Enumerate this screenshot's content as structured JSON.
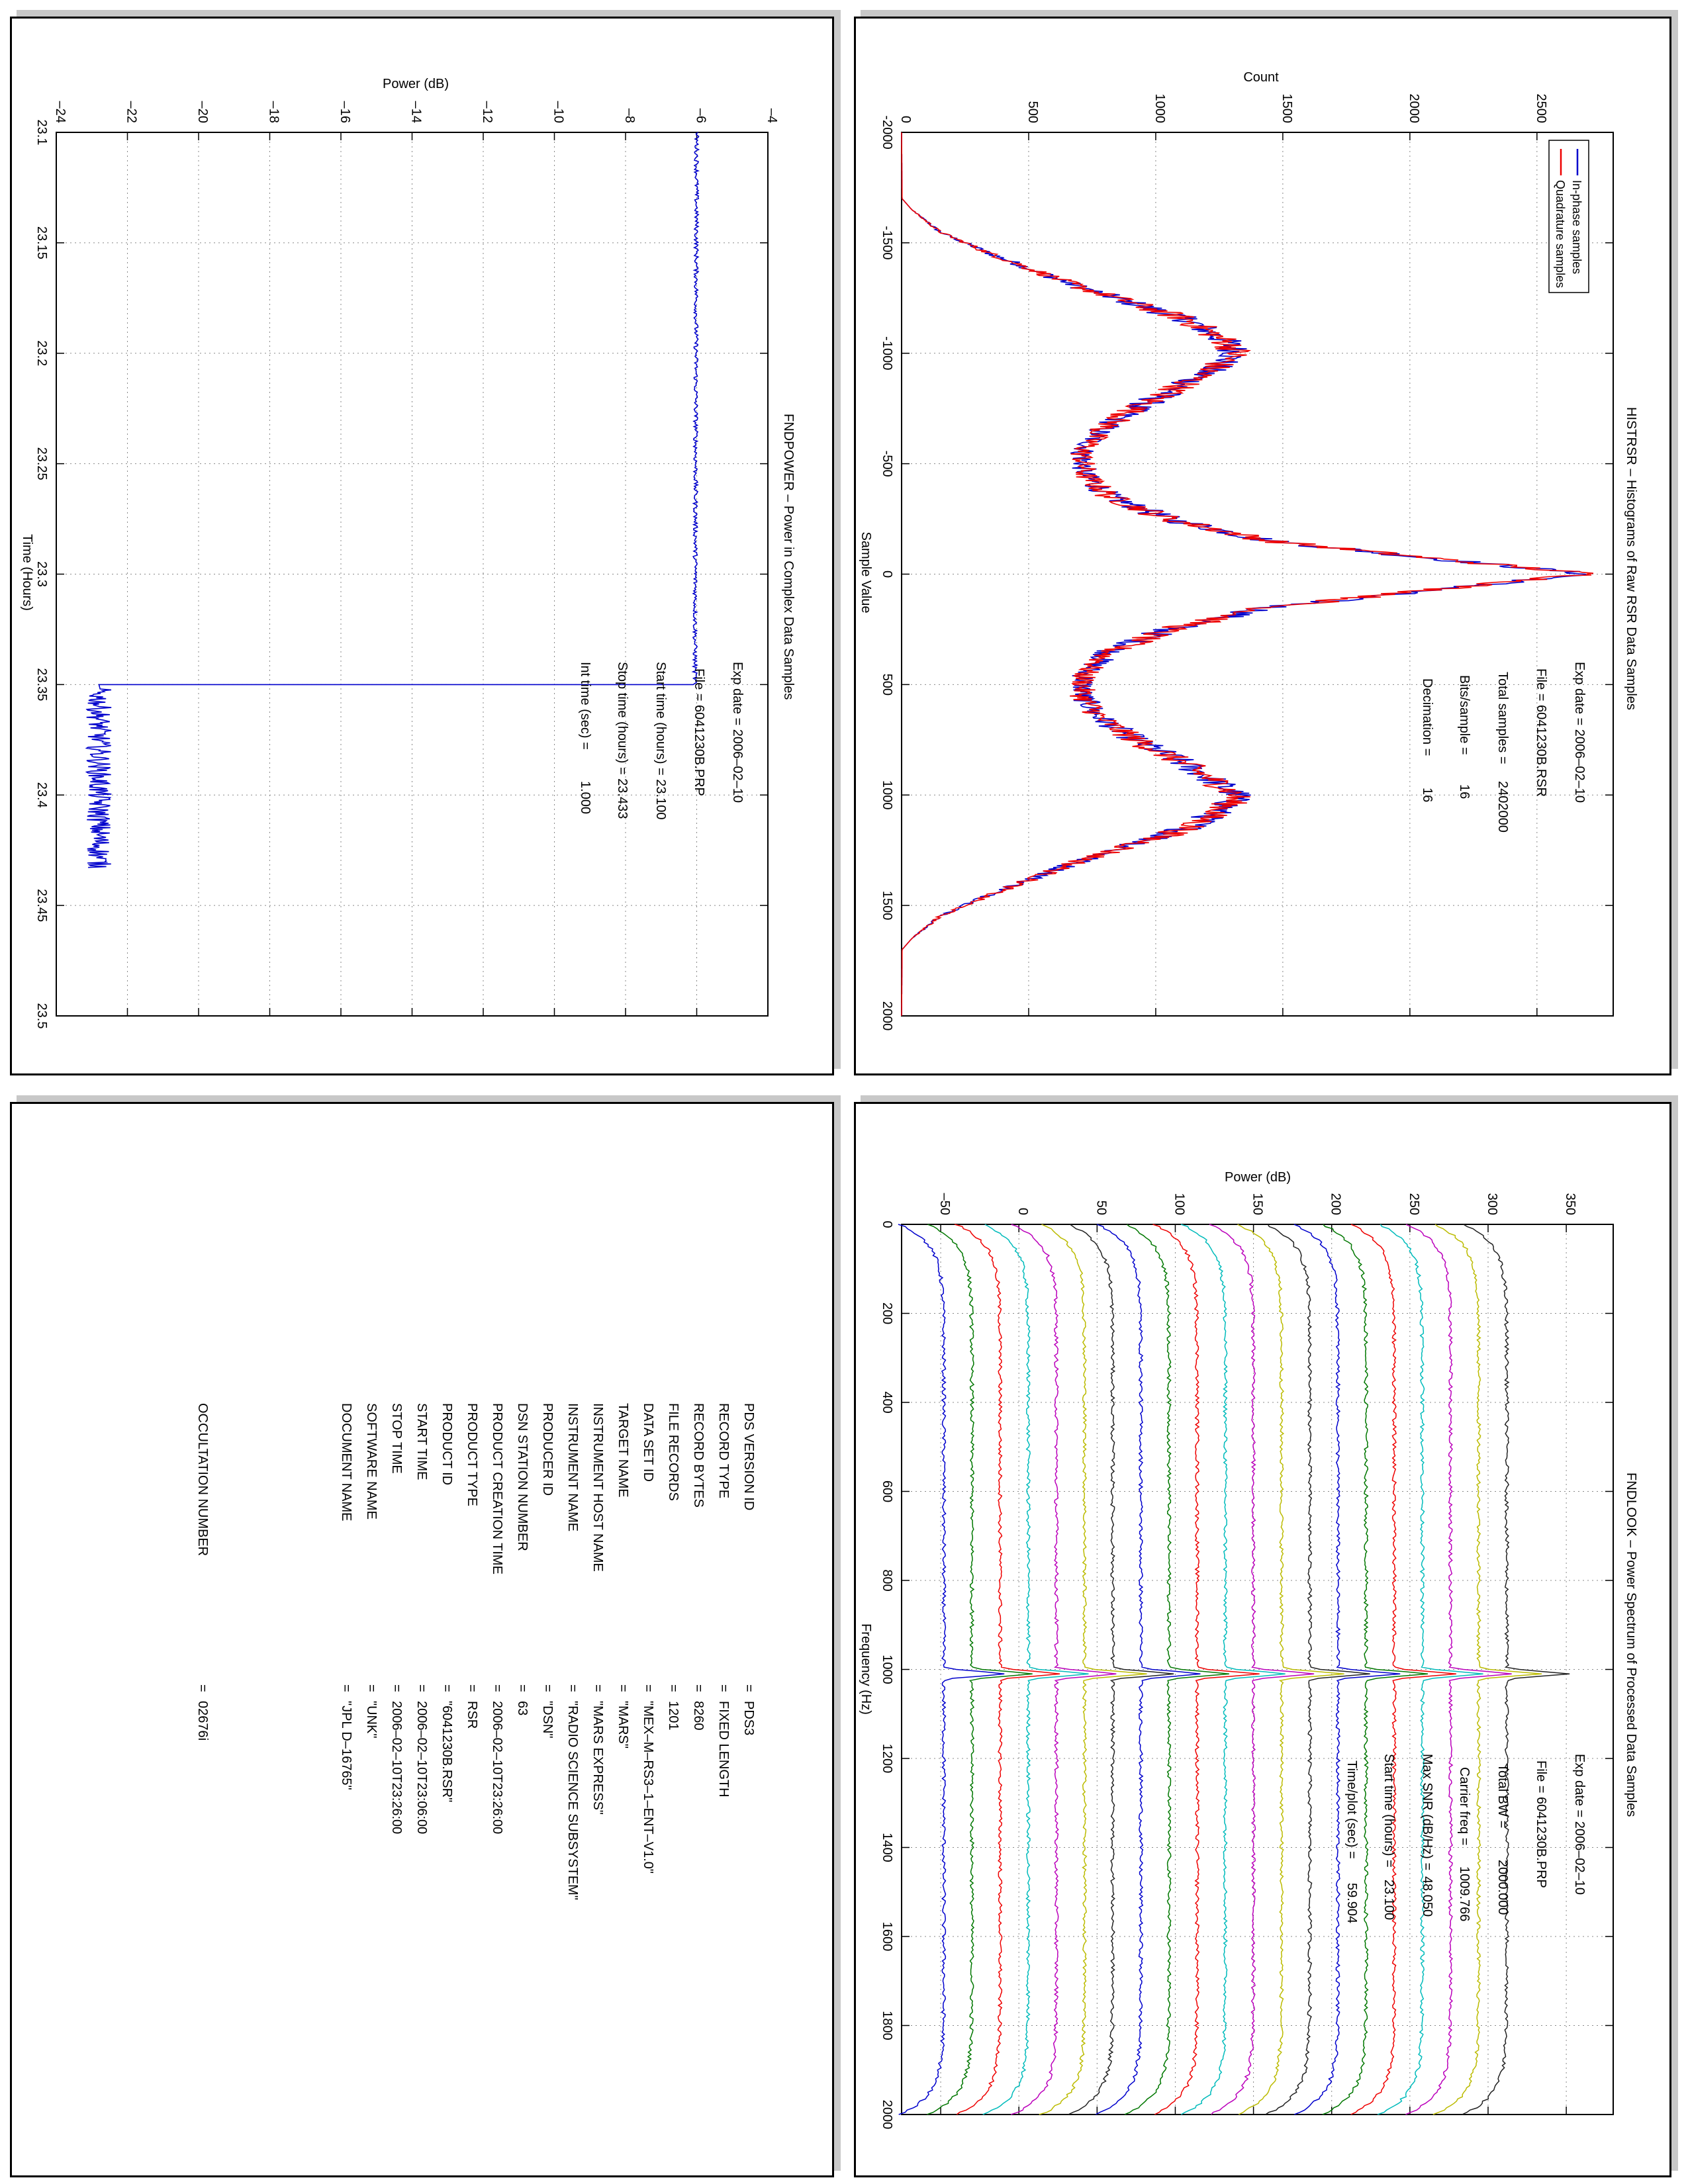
{
  "chart_data": [
    {
      "id": "histrsr",
      "type": "line",
      "title": "HISTRSR – Histograms of Raw RSR Data Samples",
      "xlabel": "Sample Value",
      "ylabel": "Count",
      "xlim": [
        -2000,
        2000
      ],
      "ylim": [
        0,
        2800
      ],
      "x_ticks": [
        -2000,
        -1500,
        -1000,
        -500,
        0,
        500,
        1000,
        1500,
        2000
      ],
      "y_ticks": [
        0,
        500,
        1000,
        1500,
        2000,
        2500
      ],
      "x_tick_labels": [
        "-2000",
        "-1500",
        "-1000",
        "-500",
        "0",
        "500",
        "1000",
        "1500",
        "2000"
      ],
      "y_tick_labels": [
        "0",
        "500",
        "1000",
        "1500",
        "2000",
        "2500"
      ],
      "grid": true,
      "legend": "top-right",
      "series": [
        {
          "name": "In-phase samples",
          "color": "#0000cc"
        },
        {
          "name": "Quadrature samples",
          "color": "#ee0000"
        }
      ],
      "shape_points": [
        [
          -2000,
          0
        ],
        [
          -1700,
          2
        ],
        [
          -1650,
          40
        ],
        [
          -1550,
          150
        ],
        [
          -1450,
          350
        ],
        [
          -1300,
          700
        ],
        [
          -1150,
          1130
        ],
        [
          -1050,
          1280
        ],
        [
          -1000,
          1320
        ],
        [
          -950,
          1250
        ],
        [
          -850,
          1100
        ],
        [
          -750,
          920
        ],
        [
          -650,
          780
        ],
        [
          -550,
          710
        ],
        [
          -450,
          720
        ],
        [
          -350,
          820
        ],
        [
          -250,
          1050
        ],
        [
          -150,
          1450
        ],
        [
          -70,
          2100
        ],
        [
          0,
          2710
        ],
        [
          70,
          2100
        ],
        [
          150,
          1450
        ],
        [
          250,
          1050
        ],
        [
          350,
          820
        ],
        [
          450,
          720
        ],
        [
          550,
          710
        ],
        [
          650,
          780
        ],
        [
          750,
          920
        ],
        [
          850,
          1100
        ],
        [
          950,
          1250
        ],
        [
          1000,
          1320
        ],
        [
          1050,
          1280
        ],
        [
          1150,
          1130
        ],
        [
          1300,
          700
        ],
        [
          1450,
          350
        ],
        [
          1550,
          150
        ],
        [
          1650,
          40
        ],
        [
          1700,
          2
        ],
        [
          2000,
          0
        ]
      ],
      "annotations": {
        "exp_date": "Exp date = 2006–02–10",
        "file": "File = 6041230B.RSR",
        "total_samples_label": "Total samples =",
        "total_samples": "2402000",
        "bits_label": "Bits/sample =",
        "bits": "16",
        "decimation_label": "Decimation =",
        "decimation": "16"
      }
    },
    {
      "id": "fndpower",
      "type": "line",
      "title": "FNDPOWER – Power in Complex Data Samples",
      "xlabel": "Time (Hours)",
      "ylabel": "Power (dB)",
      "xlim": [
        23.1,
        23.5
      ],
      "ylim": [
        -24,
        -4
      ],
      "x_ticks": [
        23.1,
        23.15,
        23.2,
        23.25,
        23.3,
        23.35,
        23.4,
        23.45,
        23.5
      ],
      "y_ticks": [
        -24,
        -22,
        -20,
        -18,
        -16,
        -14,
        -12,
        -10,
        -8,
        -6,
        -4
      ],
      "x_tick_labels": [
        "23.1",
        "23.15",
        "23.2",
        "23.25",
        "23.3",
        "23.35",
        "23.4",
        "23.45",
        "23.5"
      ],
      "y_tick_labels": [
        "–24",
        "–22",
        "–20",
        "–18",
        "–16",
        "–14",
        "–12",
        "–10",
        "–8",
        "–6",
        "–4"
      ],
      "grid": true,
      "series": [
        {
          "name": "",
          "color": "#0000cc",
          "segments": [
            {
              "x_start": 23.1,
              "x_end": 23.349,
              "y_start": -6.0,
              "y_end": -6.05,
              "noise": 0.06
            },
            {
              "x_start": 23.352,
              "x_end": 23.433,
              "y_start": -22.8,
              "y_end": -22.8,
              "noise": 0.35
            }
          ],
          "transition_x": 23.35
        }
      ],
      "annotations": {
        "exp_date": "Exp date = 2006–02–10",
        "file": "File = 6041230B.PRP",
        "start_time": "Start time (hours) = 23.100",
        "stop_time": "Stop time (hours) = 23.433",
        "int_time_label": "Int time (sec) =",
        "int_time": "1.000"
      }
    },
    {
      "id": "fndlook",
      "type": "line",
      "title": "FNDLOOK – Power Spectrum of Processed Data Samples",
      "xlabel": "Frequency (Hz)",
      "ylabel": "Power (dB)",
      "xlim": [
        0,
        2000
      ],
      "ylim": [
        -75,
        380
      ],
      "x_ticks": [
        0,
        200,
        400,
        600,
        800,
        1000,
        1200,
        1400,
        1600,
        1800,
        2000
      ],
      "y_ticks": [
        -50,
        0,
        50,
        100,
        150,
        200,
        250,
        300,
        350
      ],
      "x_tick_labels": [
        "0",
        "200",
        "400",
        "600",
        "800",
        "1000",
        "1200",
        "1400",
        "1600",
        "1800",
        "2000"
      ],
      "y_tick_labels": [
        "–50",
        "0",
        "50",
        "100",
        "150",
        "200",
        "250",
        "300",
        "350"
      ],
      "grid": true,
      "carrier_freq": 1009.766,
      "series_baselines": [
        -48,
        -30,
        -12,
        6,
        24,
        42,
        60,
        78,
        96,
        114,
        132,
        150,
        168,
        186,
        204,
        222,
        240,
        258,
        276,
        294,
        312
      ],
      "series_colors": [
        "#0000cc",
        "#007700",
        "#ee0000",
        "#00bbbb",
        "#bb00bb",
        "#bbbb00",
        "#222222",
        "#0000cc",
        "#007700",
        "#ee0000",
        "#00bbbb",
        "#bb00bb",
        "#bbbb00",
        "#222222",
        "#0000cc",
        "#007700",
        "#ee0000",
        "#00bbbb",
        "#bb00bb",
        "#bbbb00",
        "#222222"
      ],
      "peak_heights": [
        40,
        40,
        40,
        40,
        40,
        40,
        40,
        40,
        40,
        40,
        40,
        40,
        40,
        40,
        40,
        40,
        40,
        40,
        40,
        40,
        40
      ],
      "annotations": {
        "exp_date": "Exp date = 2006–02–10",
        "file": "File = 6041230B.PRP",
        "total_bw_label": "Total BW =",
        "total_bw": "2000.000",
        "carrier_freq_label": "Carrier freq =",
        "carrier_freq": "1009.766",
        "max_snr_label": "Max SNR (dB/Hz) =",
        "max_snr": "48.050",
        "start_time_label": "Start time (hours) =",
        "start_time": "23.100",
        "time_plot_label": "Time/plot (sec) =",
        "time_plot": "59.904"
      }
    }
  ],
  "label": {
    "rows": [
      {
        "key": "PDS VERSION ID",
        "value": "PDS3"
      },
      {
        "key": "RECORD TYPE",
        "value": "FIXED LENGTH"
      },
      {
        "key": "RECORD BYTES",
        "value": "8260"
      },
      {
        "key": "FILE RECORDS",
        "value": "1201"
      },
      {
        "key": "DATA SET ID",
        "value": "\"MEX–M–RS3–1–ENT–V1.0\""
      },
      {
        "key": "TARGET NAME",
        "value": "\"MARS\""
      },
      {
        "key": "INSTRUMENT HOST NAME",
        "value": "\"MARS EXPRESS\""
      },
      {
        "key": "INSTRUMENT NAME",
        "value": "\"RADIO SCIENCE SUBSYSTEM\""
      },
      {
        "key": "PRODUCER ID",
        "value": "\"DSN\""
      },
      {
        "key": "DSN STATION NUMBER",
        "value": "63"
      },
      {
        "key": "PRODUCT CREATION TIME",
        "value": "2006–02–10T23:26:00"
      },
      {
        "key": "PRODUCT TYPE",
        "value": "RSR"
      },
      {
        "key": "PRODUCT ID",
        "value": "\"6041230B.RSR\""
      },
      {
        "key": "START TIME",
        "value": "2006–02–10T23:06:00"
      },
      {
        "key": "STOP TIME",
        "value": "2006–02–10T23:26:00"
      },
      {
        "key": "SOFTWARE NAME",
        "value": "\"UNK\""
      },
      {
        "key": "DOCUMENT NAME",
        "value": "\"JPL D–16765\""
      }
    ],
    "occultation_key": "OCCULTATION NUMBER",
    "occultation_value": "02676i",
    "equals": "="
  }
}
